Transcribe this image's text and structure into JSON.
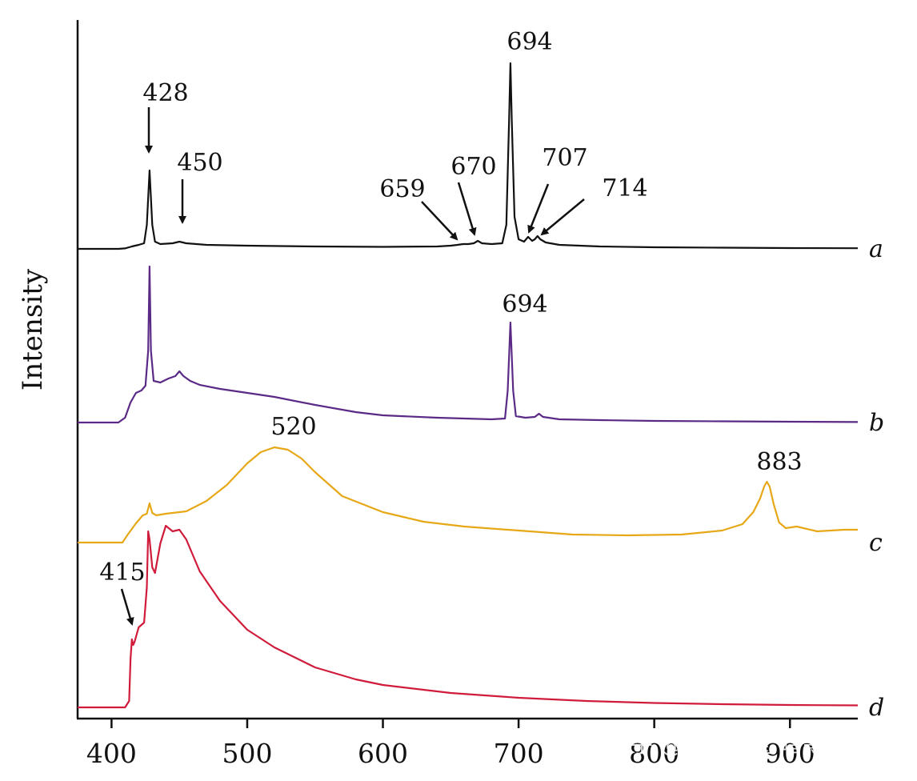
{
  "chart_data": {
    "type": "line",
    "title": "",
    "xlabel": "",
    "ylabel": "Intensity",
    "xlim": [
      375,
      950
    ],
    "x_ticks": [
      400,
      500,
      600,
      700,
      800,
      900
    ],
    "x_tick_labels": [
      "400",
      "500",
      "600",
      "700",
      "800",
      "900"
    ],
    "y_ticks_shown": false,
    "grid": false,
    "legend": "none",
    "series": [
      {
        "name": "a",
        "color": "#111111",
        "points": [
          [
            375,
            0
          ],
          [
            405,
            0
          ],
          [
            410,
            0.6
          ],
          [
            415,
            3
          ],
          [
            420,
            5
          ],
          [
            424,
            7
          ],
          [
            426,
            30
          ],
          [
            428,
            98
          ],
          [
            430,
            30
          ],
          [
            432,
            9
          ],
          [
            436,
            6
          ],
          [
            445,
            7
          ],
          [
            450,
            9
          ],
          [
            455,
            7
          ],
          [
            470,
            5
          ],
          [
            500,
            4
          ],
          [
            550,
            3
          ],
          [
            600,
            2.5
          ],
          [
            640,
            3
          ],
          [
            650,
            4
          ],
          [
            655,
            5
          ],
          [
            659,
            6
          ],
          [
            663,
            6
          ],
          [
            667,
            7
          ],
          [
            670,
            10
          ],
          [
            673,
            7
          ],
          [
            680,
            6
          ],
          [
            688,
            7
          ],
          [
            691,
            30
          ],
          [
            693,
            160
          ],
          [
            694,
            232
          ],
          [
            695,
            160
          ],
          [
            697,
            40
          ],
          [
            700,
            12
          ],
          [
            704,
            9
          ],
          [
            707,
            15
          ],
          [
            710,
            10
          ],
          [
            712,
            12
          ],
          [
            714,
            16
          ],
          [
            716,
            12
          ],
          [
            720,
            8
          ],
          [
            730,
            5
          ],
          [
            760,
            3
          ],
          [
            800,
            2
          ],
          [
            850,
            1.5
          ],
          [
            900,
            1
          ],
          [
            950,
            0.8
          ]
        ]
      },
      {
        "name": "b",
        "color": "#5b2a86",
        "points": [
          [
            375,
            0
          ],
          [
            405,
            0
          ],
          [
            410,
            6
          ],
          [
            414,
            25
          ],
          [
            418,
            37
          ],
          [
            422,
            40
          ],
          [
            425,
            46
          ],
          [
            427,
            90
          ],
          [
            428,
            195
          ],
          [
            429,
            90
          ],
          [
            431,
            52
          ],
          [
            436,
            50
          ],
          [
            442,
            55
          ],
          [
            447,
            58
          ],
          [
            450,
            64
          ],
          [
            453,
            58
          ],
          [
            458,
            52
          ],
          [
            465,
            47
          ],
          [
            480,
            42
          ],
          [
            500,
            37
          ],
          [
            520,
            32
          ],
          [
            550,
            22
          ],
          [
            580,
            13
          ],
          [
            600,
            9
          ],
          [
            640,
            6
          ],
          [
            660,
            5
          ],
          [
            680,
            4
          ],
          [
            690,
            5
          ],
          [
            692,
            40
          ],
          [
            694,
            125
          ],
          [
            696,
            40
          ],
          [
            698,
            8
          ],
          [
            705,
            6
          ],
          [
            712,
            7
          ],
          [
            715,
            11
          ],
          [
            718,
            7
          ],
          [
            730,
            4
          ],
          [
            760,
            3
          ],
          [
            800,
            2
          ],
          [
            850,
            1.5
          ],
          [
            900,
            1
          ],
          [
            950,
            0.6
          ]
        ]
      },
      {
        "name": "c",
        "color": "#e6a817",
        "points": [
          [
            375,
            0
          ],
          [
            408,
            0
          ],
          [
            412,
            10
          ],
          [
            418,
            24
          ],
          [
            423,
            34
          ],
          [
            426,
            36
          ],
          [
            428,
            49
          ],
          [
            430,
            37
          ],
          [
            433,
            34
          ],
          [
            440,
            36
          ],
          [
            455,
            39
          ],
          [
            470,
            52
          ],
          [
            485,
            72
          ],
          [
            500,
            99
          ],
          [
            510,
            113
          ],
          [
            520,
            119
          ],
          [
            530,
            116
          ],
          [
            540,
            105
          ],
          [
            550,
            88
          ],
          [
            570,
            58
          ],
          [
            600,
            38
          ],
          [
            630,
            26
          ],
          [
            660,
            20
          ],
          [
            700,
            15
          ],
          [
            740,
            10
          ],
          [
            780,
            9
          ],
          [
            820,
            10
          ],
          [
            850,
            15
          ],
          [
            865,
            23
          ],
          [
            873,
            38
          ],
          [
            878,
            55
          ],
          [
            881,
            70
          ],
          [
            883,
            76
          ],
          [
            885,
            70
          ],
          [
            888,
            48
          ],
          [
            892,
            25
          ],
          [
            897,
            18
          ],
          [
            905,
            20
          ],
          [
            920,
            14
          ],
          [
            930,
            15
          ],
          [
            940,
            16
          ],
          [
            950,
            16
          ]
        ]
      },
      {
        "name": "d",
        "color": "#d01b3b",
        "points": [
          [
            375,
            0
          ],
          [
            410,
            0
          ],
          [
            413,
            8
          ],
          [
            414,
            60
          ],
          [
            415,
            85
          ],
          [
            416,
            78
          ],
          [
            417,
            82
          ],
          [
            420,
            100
          ],
          [
            424,
            106
          ],
          [
            426,
            150
          ],
          [
            427,
            220
          ],
          [
            428,
            210
          ],
          [
            430,
            175
          ],
          [
            432,
            168
          ],
          [
            436,
            205
          ],
          [
            440,
            227
          ],
          [
            445,
            220
          ],
          [
            450,
            222
          ],
          [
            455,
            210
          ],
          [
            465,
            170
          ],
          [
            480,
            133
          ],
          [
            500,
            97
          ],
          [
            520,
            75
          ],
          [
            550,
            50
          ],
          [
            580,
            35
          ],
          [
            600,
            28
          ],
          [
            650,
            18
          ],
          [
            700,
            12
          ],
          [
            750,
            8
          ],
          [
            800,
            5.5
          ],
          [
            850,
            4
          ],
          [
            900,
            3
          ],
          [
            950,
            2.5
          ]
        ]
      }
    ],
    "series_labels": [
      "a",
      "b",
      "c",
      "d"
    ],
    "annotations": [
      {
        "series": "a",
        "text": "428",
        "x": 428,
        "arrow": true
      },
      {
        "series": "a",
        "text": "450",
        "x": 450,
        "arrow": true
      },
      {
        "series": "a",
        "text": "659",
        "x": 659,
        "arrow": true
      },
      {
        "series": "a",
        "text": "670",
        "x": 670,
        "arrow": true
      },
      {
        "series": "a",
        "text": "694",
        "x": 694,
        "arrow": false
      },
      {
        "series": "a",
        "text": "707",
        "x": 707,
        "arrow": true
      },
      {
        "series": "a",
        "text": "714",
        "x": 714,
        "arrow": true
      },
      {
        "series": "b",
        "text": "694",
        "x": 694,
        "arrow": false
      },
      {
        "series": "c",
        "text": "520",
        "x": 520,
        "arrow": false
      },
      {
        "series": "c",
        "text": "883",
        "x": 883,
        "arrow": false
      },
      {
        "series": "d",
        "text": "415",
        "x": 415,
        "arrow": true
      }
    ]
  },
  "watermark": "知乎 @吃人珠宝 暗影猫"
}
